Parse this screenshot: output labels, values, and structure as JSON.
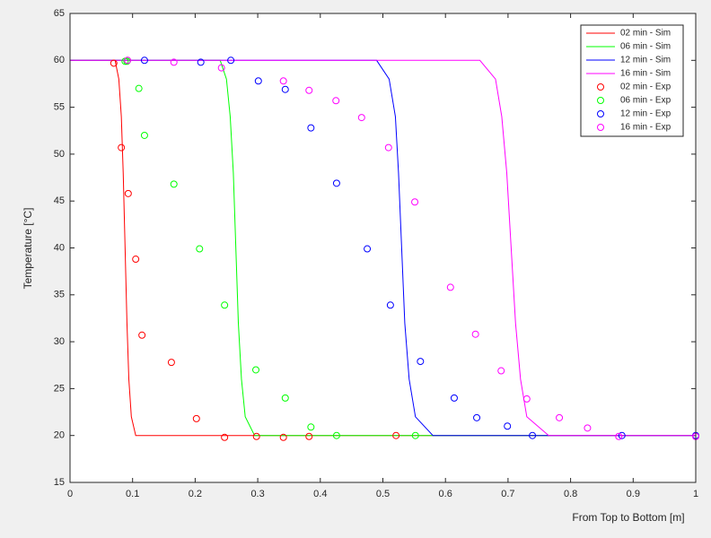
{
  "chart_data": {
    "type": "line",
    "xlabel": "From Top to Bottom [m]",
    "ylabel": "Temperature [°C]",
    "xlim": [
      0,
      1
    ],
    "xticks": [
      0,
      0.1,
      0.2,
      0.3,
      0.4,
      0.5,
      0.6,
      0.7,
      0.8,
      0.9,
      1
    ],
    "ylim": [
      15,
      65
    ],
    "yticks": [
      15,
      20,
      25,
      30,
      35,
      40,
      45,
      50,
      55,
      60,
      65
    ],
    "grid": false,
    "legend": "upper-right",
    "series": [
      {
        "name": "02 min - Sim",
        "color": "#ff0000",
        "style": "line",
        "x": [
          0,
          0.072,
          0.078,
          0.082,
          0.085,
          0.088,
          0.091,
          0.094,
          0.098,
          0.105,
          1
        ],
        "values": [
          60,
          60,
          58,
          54,
          48,
          40,
          32,
          26,
          22,
          20,
          20
        ]
      },
      {
        "name": "06 min - Sim",
        "color": "#00ff00",
        "style": "line",
        "x": [
          0,
          0.24,
          0.25,
          0.256,
          0.261,
          0.265,
          0.269,
          0.274,
          0.28,
          0.295,
          1
        ],
        "values": [
          60,
          60,
          58,
          54,
          48,
          40,
          32,
          26,
          22,
          20,
          20
        ]
      },
      {
        "name": "12 min - Sim",
        "color": "#0000ff",
        "style": "line",
        "x": [
          0,
          0.49,
          0.51,
          0.52,
          0.525,
          0.53,
          0.535,
          0.542,
          0.552,
          0.58,
          1
        ],
        "values": [
          60,
          60,
          58,
          54,
          48,
          40,
          32,
          26,
          22,
          20,
          20
        ]
      },
      {
        "name": "16 min - Sim",
        "color": "#ff00ff",
        "style": "line",
        "x": [
          0,
          0.655,
          0.68,
          0.69,
          0.698,
          0.705,
          0.712,
          0.72,
          0.73,
          0.765,
          1
        ],
        "values": [
          60,
          60,
          58,
          54,
          48,
          40,
          32,
          26,
          22,
          20,
          20
        ]
      },
      {
        "name": "02 min - Exp",
        "color": "#ff0000",
        "style": "marker",
        "x": [
          0.07,
          0.082,
          0.093,
          0.105,
          0.115,
          0.162,
          0.202,
          0.247,
          0.298,
          0.341,
          0.382,
          0.521
        ],
        "values": [
          59.7,
          50.7,
          45.8,
          38.8,
          30.7,
          27.8,
          21.8,
          19.8,
          19.9,
          19.8,
          19.9,
          20
        ]
      },
      {
        "name": "06 min - Exp",
        "color": "#00ff00",
        "style": "marker",
        "x": [
          0.088,
          0.091,
          0.11,
          0.119,
          0.166,
          0.207,
          0.247,
          0.297,
          0.344,
          0.385,
          0.426,
          0.552
        ],
        "values": [
          59.9,
          59.9,
          57,
          52,
          46.8,
          39.9,
          33.9,
          27,
          24,
          20.9,
          20,
          20
        ]
      },
      {
        "name": "12 min - Exp",
        "color": "#0000ff",
        "style": "marker",
        "x": [
          0.119,
          0.209,
          0.257,
          0.301,
          0.344,
          0.385,
          0.426,
          0.475,
          0.512,
          0.56,
          0.614,
          0.65,
          0.699,
          0.739,
          0.882,
          1
        ],
        "values": [
          60,
          59.8,
          60,
          57.8,
          56.9,
          52.8,
          46.9,
          39.9,
          33.9,
          27.9,
          24,
          21.9,
          21,
          20,
          20,
          20
        ]
      },
      {
        "name": "16 min - Exp",
        "color": "#ff00ff",
        "style": "marker",
        "x": [
          0.092,
          0.166,
          0.242,
          0.341,
          0.382,
          0.425,
          0.466,
          0.509,
          0.551,
          0.608,
          0.648,
          0.689,
          0.73,
          0.782,
          0.827,
          0.877,
          1
        ],
        "values": [
          60,
          59.8,
          59.2,
          57.8,
          56.8,
          55.7,
          53.9,
          50.7,
          44.9,
          35.8,
          30.8,
          26.9,
          23.9,
          21.9,
          20.8,
          19.9,
          19.9
        ]
      }
    ]
  }
}
